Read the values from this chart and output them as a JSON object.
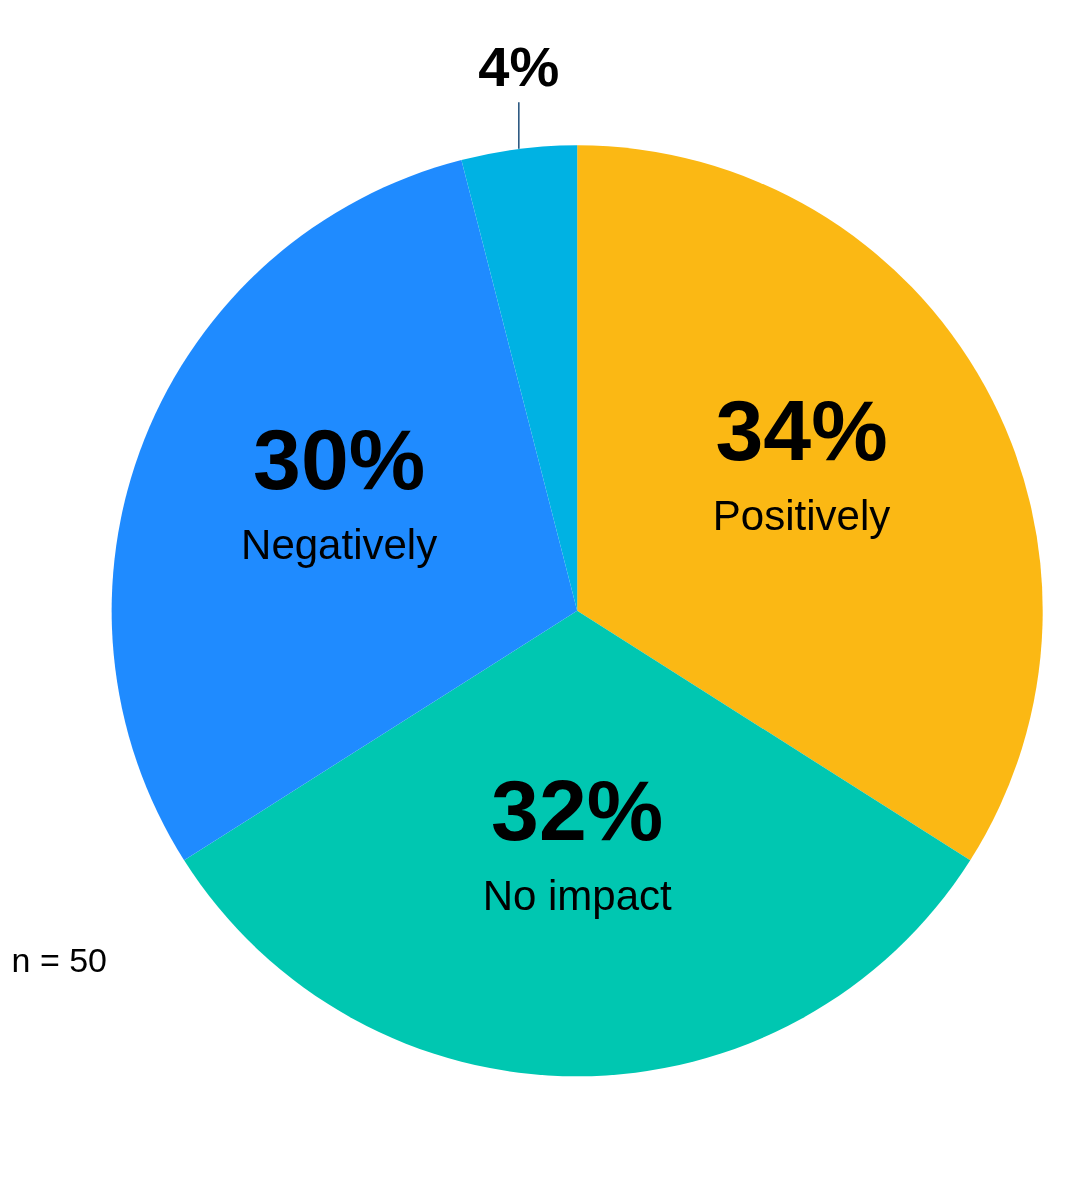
{
  "chart_data": {
    "type": "pie",
    "categories": [
      "Positively",
      "No impact",
      "Negatively",
      null
    ],
    "values": [
      34,
      32,
      30,
      4
    ],
    "colors": [
      "#fbb814",
      "#00c7b1",
      "#1f8bff",
      "#00b2e3"
    ],
    "value_labels": [
      "34%",
      "32%",
      "30%",
      "4%"
    ],
    "annotations": [
      "n = 50"
    ]
  }
}
